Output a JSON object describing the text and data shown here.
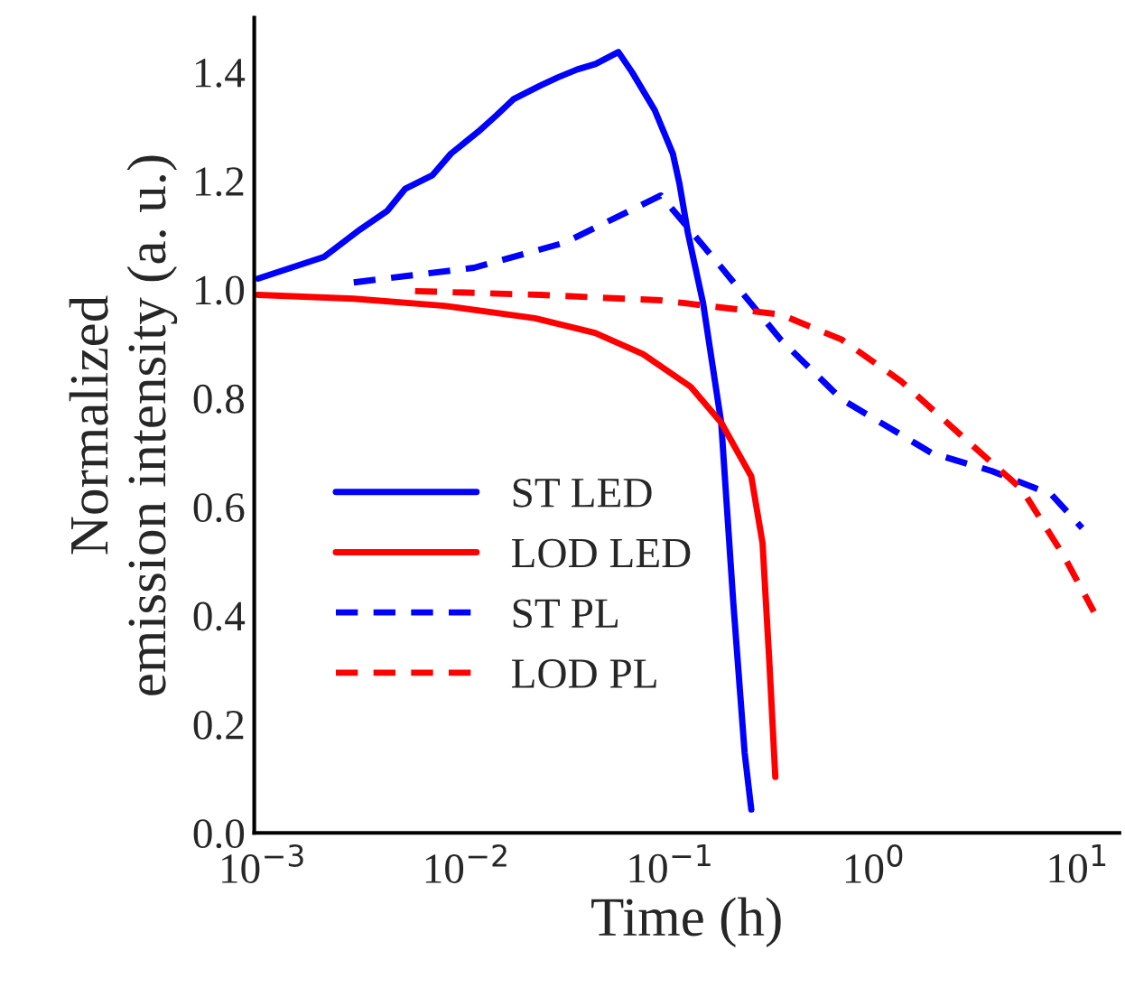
{
  "chart_data": {
    "type": "line",
    "xlabel": "Time (h)",
    "ylabel": "Normalized\nemission intensity (a. u.)",
    "log": "x",
    "grid": false,
    "legend": "bottom left",
    "xlim": [
      0.00091,
      16
    ],
    "xticks": [
      {
        "value": 0.001,
        "label": "10$^{−3}$"
      },
      {
        "value": 0.01,
        "label": "10$^{−2}$"
      },
      {
        "value": 0.1,
        "label": "10$^{−1}$"
      },
      {
        "value": 1,
        "label": "10$^{0}$"
      },
      {
        "value": 10,
        "label": "10$^{1}$"
      }
    ],
    "ylim": [
      0,
      1.5
    ],
    "yticks": [
      {
        "value": 0,
        "label": "0.0"
      },
      0.2,
      0.4,
      0.6,
      0.8,
      {
        "value": 1,
        "label": "1.0"
      },
      1.2,
      1.4
    ],
    "series": [
      {
        "name": "ST LED",
        "color": "#0000ff",
        "line_style": "solid",
        "x": [
          0.00095,
          0.002,
          0.003,
          0.0041,
          0.005,
          0.0068,
          0.0084,
          0.0114,
          0.014,
          0.017,
          0.023,
          0.028,
          0.035,
          0.043,
          0.0557,
          0.065,
          0.084,
          0.103,
          0.111,
          0.122,
          0.145,
          0.178,
          0.204,
          0.232,
          0.25
        ],
        "values": [
          1.02,
          1.06,
          1.11,
          1.145,
          1.185,
          1.21,
          1.25,
          1.29,
          1.32,
          1.35,
          1.375,
          1.39,
          1.405,
          1.415,
          1.437,
          1.4,
          1.33,
          1.25,
          1.195,
          1.105,
          0.975,
          0.755,
          0.424,
          0.147,
          0.043
        ]
      },
      {
        "name": "LOD LED",
        "color": "#ff0000",
        "line_style": "solid",
        "x": [
          0.00095,
          0.0028,
          0.0078,
          0.0217,
          0.0428,
          0.0736,
          0.126,
          0.178,
          0.25,
          0.284,
          0.307,
          0.328
        ],
        "values": [
          0.99,
          0.983,
          0.97,
          0.947,
          0.92,
          0.881,
          0.821,
          0.755,
          0.656,
          0.533,
          0.311,
          0.103
        ]
      },
      {
        "name": "ST PL",
        "color": "#0000ff",
        "line_style": "dashed",
        "x": [
          0.0028,
          0.0109,
          0.0303,
          0.09,
          0.178,
          0.348,
          0.693,
          1.92,
          3.78,
          7.41,
          10.5
        ],
        "values": [
          1.013,
          1.04,
          1.086,
          1.173,
          1.041,
          0.908,
          0.798,
          0.699,
          0.666,
          0.623,
          0.561
        ]
      },
      {
        "name": "LOD PL",
        "color": "#ff0000",
        "line_style": "dashed",
        "x": [
          0.0056,
          0.0232,
          0.09,
          0.348,
          0.693,
          1.36,
          2.67,
          5.32,
          8.5,
          12.0
        ],
        "values": [
          0.997,
          0.99,
          0.98,
          0.954,
          0.908,
          0.831,
          0.732,
          0.632,
          0.511,
          0.407
        ]
      }
    ]
  }
}
